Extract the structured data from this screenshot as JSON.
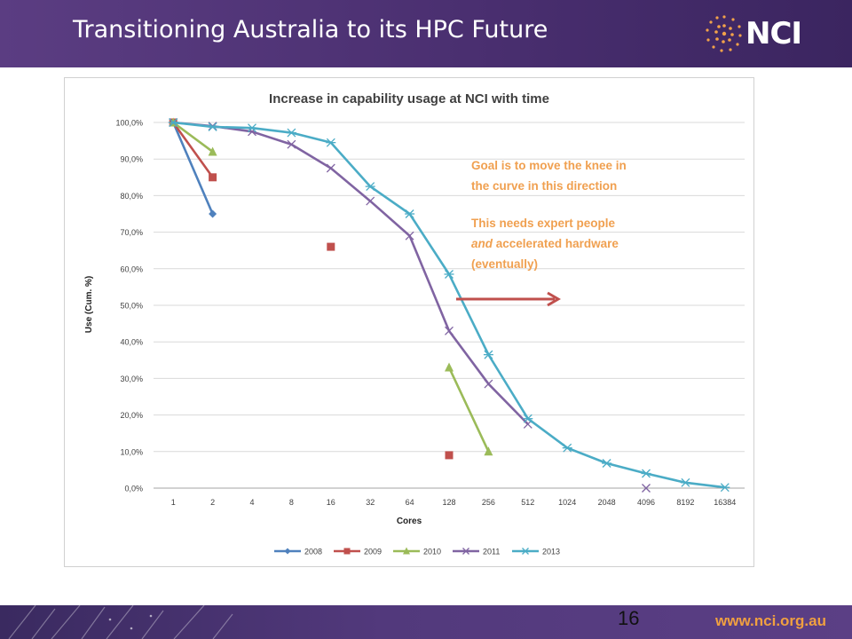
{
  "slide": {
    "title": "Transitioning Australia to its HPC Future",
    "logo_text": "NCI",
    "page_number": "16",
    "footer_url": "www.nci.org.au"
  },
  "annotation": {
    "line1": "Goal is to move the knee in",
    "line2": "the curve in this direction",
    "line3": "This needs expert people",
    "line4_em": "and",
    "line4_rest": " accelerated hardware",
    "line5": "(eventually)",
    "color": "#f0a050",
    "arrow_color": "#c0504d"
  },
  "chart_data": {
    "type": "line",
    "title": "Increase in capability usage at NCI with time",
    "xlabel": "Cores",
    "ylabel": "Use (Cum. %)",
    "categories": [
      "1",
      "2",
      "4",
      "8",
      "16",
      "32",
      "64",
      "128",
      "256",
      "512",
      "1024",
      "2048",
      "4096",
      "8192",
      "16384"
    ],
    "ylim": [
      0,
      100
    ],
    "yticks": [
      "0,0%",
      "10,0%",
      "20,0%",
      "30,0%",
      "40,0%",
      "50,0%",
      "60,0%",
      "70,0%",
      "80,0%",
      "90,0%",
      "100,0%"
    ],
    "grid": true,
    "legend_position": "bottom",
    "series": [
      {
        "name": "2008",
        "color": "#4f81bd",
        "marker": "diamond",
        "segments": [
          [
            [
              0,
              100
            ],
            [
              1,
              75
            ]
          ]
        ]
      },
      {
        "name": "2009",
        "color": "#c0504d",
        "marker": "square",
        "segments": [
          [
            [
              0,
              100
            ],
            [
              1,
              85
            ]
          ]
        ],
        "points": [
          [
            4,
            66
          ],
          [
            7,
            9
          ]
        ]
      },
      {
        "name": "2010",
        "color": "#9bbb59",
        "marker": "triangle",
        "segments": [
          [
            [
              0,
              100
            ],
            [
              1,
              92
            ]
          ],
          [
            [
              7,
              33
            ],
            [
              8,
              10
            ]
          ]
        ]
      },
      {
        "name": "2011",
        "color": "#8064a2",
        "marker": "x",
        "segments": [
          [
            [
              0,
              100
            ],
            [
              1,
              99
            ],
            [
              2,
              97.5
            ],
            [
              3,
              94
            ],
            [
              4,
              87.5
            ],
            [
              5,
              78.5
            ],
            [
              6,
              69
            ],
            [
              7,
              43
            ],
            [
              8,
              28.5
            ],
            [
              9,
              17.5
            ]
          ]
        ],
        "points": [
          [
            12,
            0
          ]
        ]
      },
      {
        "name": "2013",
        "color": "#4bacc6",
        "marker": "star",
        "segments": [
          [
            [
              0,
              100
            ],
            [
              1,
              98.8
            ],
            [
              2,
              98.5
            ],
            [
              3,
              97.2
            ],
            [
              4,
              94.5
            ],
            [
              5,
              82.5
            ],
            [
              6,
              75
            ],
            [
              7,
              58.5
            ],
            [
              8,
              36.5
            ],
            [
              9,
              19
            ],
            [
              10,
              11
            ],
            [
              11,
              6.8
            ],
            [
              12,
              4
            ],
            [
              13,
              1.5
            ],
            [
              14,
              0.2
            ]
          ]
        ]
      }
    ]
  }
}
